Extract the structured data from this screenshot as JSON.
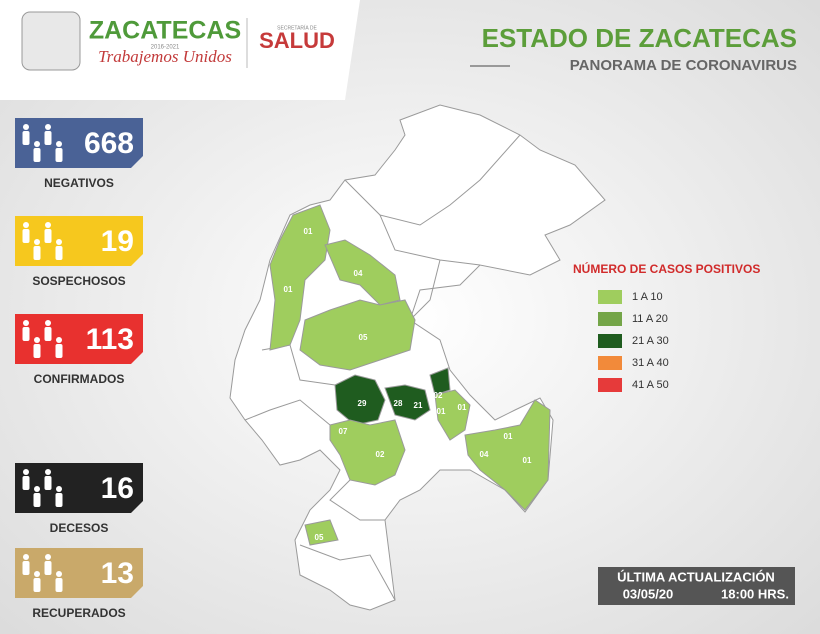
{
  "header": {
    "logo_title": "ZACATECAS",
    "logo_years": "2016-2021",
    "logo_slogan": "Trabajemos Unidos",
    "secretaria": "SECRETARÍA DE",
    "salud": "SALUD",
    "title": "ESTADO DE ZACATECAS",
    "subtitle": "PANORAMA DE CORONAVIRUS"
  },
  "stats": [
    {
      "value": 668,
      "label": "NEGATIVOS",
      "color": "#4a6296"
    },
    {
      "value": 19,
      "label": "SOSPECHOSOS",
      "color": "#f6c81e"
    },
    {
      "value": 113,
      "label": "CONFIRMADOS",
      "color": "#e8312f"
    },
    {
      "value": 16,
      "label": "DECESOS",
      "color": "#222222"
    },
    {
      "value": 13,
      "label": "RECUPERADOS",
      "color": "#c9a96a"
    }
  ],
  "legend": {
    "title": "NÚMERO DE CASOS POSITIVOS",
    "items": [
      {
        "label": "1 A 10",
        "color": "#9fcd5e"
      },
      {
        "label": "11 A 20",
        "color": "#74a548"
      },
      {
        "label": "21 A 30",
        "color": "#1f5c1f"
      },
      {
        "label": "31 A 40",
        "color": "#f28a3a"
      },
      {
        "label": "41 A 50",
        "color": "#e63a3a"
      }
    ]
  },
  "map_labels": [
    "01",
    "04",
    "01",
    "05",
    "29",
    "28",
    "21",
    "02",
    "01",
    "01",
    "07",
    "02",
    "01",
    "04",
    "01",
    "05"
  ],
  "update": {
    "title": "ÚLTIMA ACTUALIZACIÓN",
    "date": "03/05/20",
    "time": "18:00 HRS."
  }
}
